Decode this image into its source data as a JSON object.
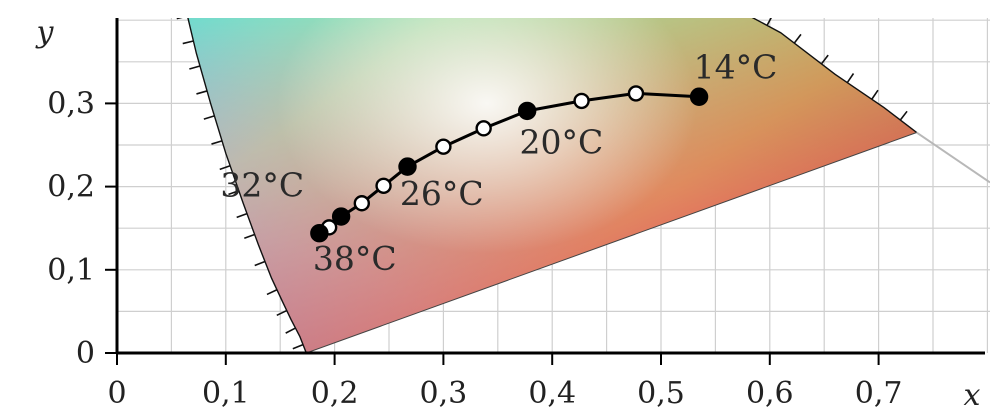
{
  "chart_data": {
    "type": "scatter",
    "title": "",
    "xlabel": "x",
    "ylabel": "y",
    "xlim": [
      0,
      0.8
    ],
    "ylim": [
      0,
      0.4
    ],
    "grid": true,
    "x_ticks": [
      {
        "value": 0,
        "label": "0"
      },
      {
        "value": 0.1,
        "label": "0,1"
      },
      {
        "value": 0.2,
        "label": "0,2"
      },
      {
        "value": 0.3,
        "label": "0,3"
      },
      {
        "value": 0.4,
        "label": "0,4"
      },
      {
        "value": 0.5,
        "label": "0,5"
      },
      {
        "value": 0.6,
        "label": "0,6"
      },
      {
        "value": 0.7,
        "label": "0,7"
      }
    ],
    "y_ticks": [
      {
        "value": 0,
        "label": "0"
      },
      {
        "value": 0.1,
        "label": "0,1"
      },
      {
        "value": 0.2,
        "label": "0,2"
      },
      {
        "value": 0.3,
        "label": "0,3"
      }
    ],
    "series": [
      {
        "points": [
          {
            "x": 0.535,
            "y": 0.308,
            "filled": true,
            "label": "14°C"
          },
          {
            "x": 0.477,
            "y": 0.312,
            "filled": false
          },
          {
            "x": 0.427,
            "y": 0.303,
            "filled": false
          },
          {
            "x": 0.377,
            "y": 0.291,
            "filled": true,
            "label": "20°C"
          },
          {
            "x": 0.337,
            "y": 0.27,
            "filled": false
          },
          {
            "x": 0.3,
            "y": 0.248,
            "filled": false
          },
          {
            "x": 0.267,
            "y": 0.224,
            "filled": true,
            "label": "26°C"
          },
          {
            "x": 0.245,
            "y": 0.201,
            "filled": false
          },
          {
            "x": 0.225,
            "y": 0.18,
            "filled": false
          },
          {
            "x": 0.206,
            "y": 0.164,
            "filled": true,
            "label": "32°C"
          },
          {
            "x": 0.195,
            "y": 0.151,
            "filled": false
          },
          {
            "x": 0.186,
            "y": 0.144,
            "filled": true,
            "label": "38°C"
          }
        ]
      }
    ],
    "label_positions": {
      "14°C": [
        0.53,
        0.33
      ],
      "20°C": [
        0.37,
        0.24
      ],
      "26°C": [
        0.26,
        0.178
      ],
      "32°C": [
        0.095,
        0.188
      ],
      "38°C": [
        0.18,
        0.1
      ]
    }
  },
  "colors": {
    "blue_corner": "#1010ff",
    "red_corner": "#ff0010",
    "magenta_edge": "#ff10d0",
    "cyan_top": "#22e6d8",
    "yellow_top": "#ffe060",
    "grid": "#cfcfcf",
    "curve": "#000000"
  }
}
